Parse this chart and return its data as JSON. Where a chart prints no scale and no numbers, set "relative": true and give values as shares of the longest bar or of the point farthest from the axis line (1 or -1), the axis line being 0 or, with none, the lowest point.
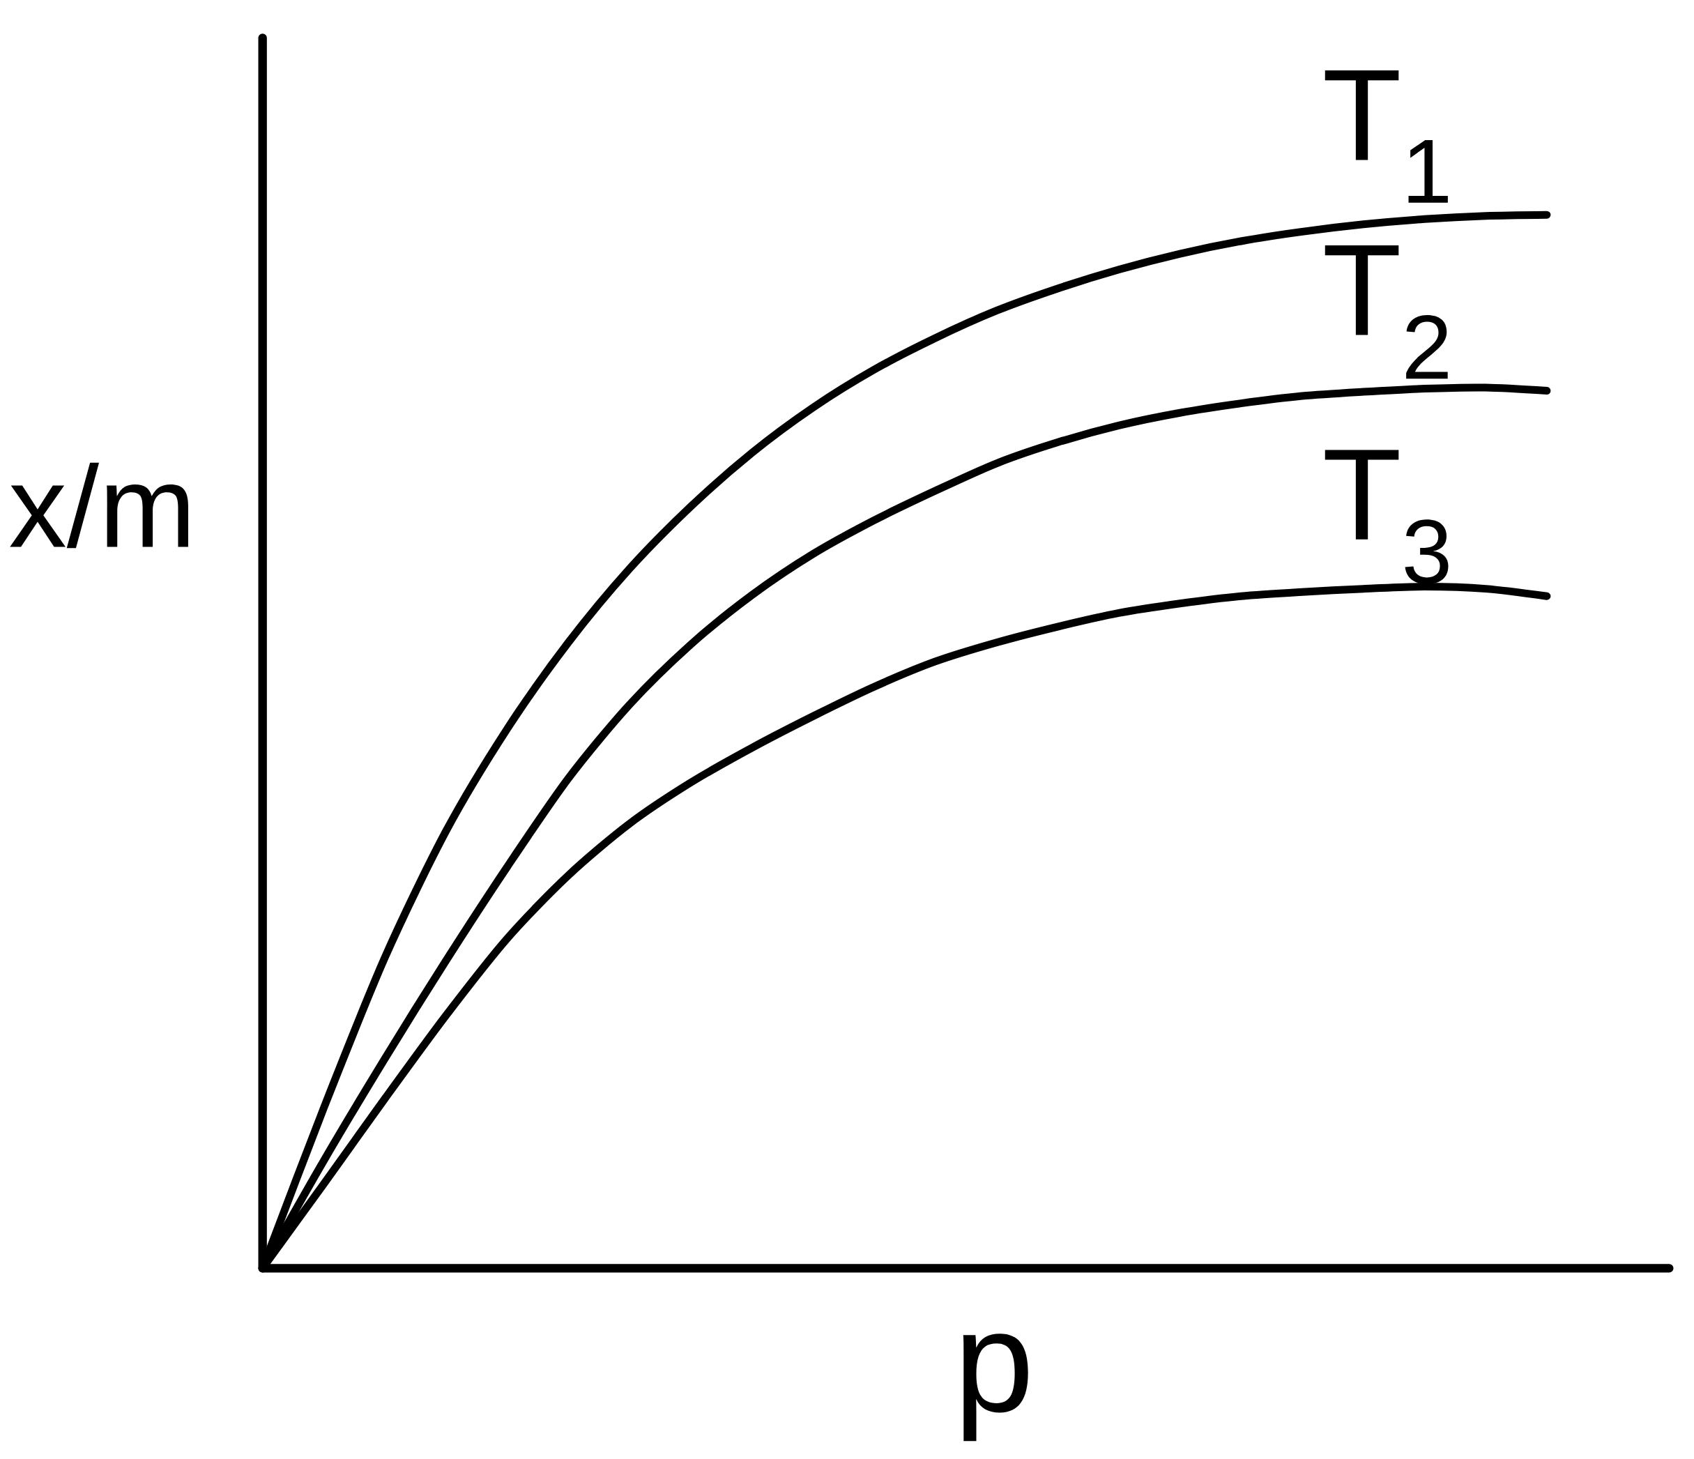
{
  "chart_data": {
    "type": "line",
    "relative": true,
    "xlabel": "p",
    "ylabel": "x/m",
    "categories": [
      null,
      null,
      null,
      null,
      null,
      null,
      null,
      null,
      null,
      null,
      null,
      null,
      null,
      null,
      null,
      null,
      null,
      null,
      null,
      null,
      null,
      null,
      null,
      null
    ],
    "series": [
      {
        "name": "T$_{1}$",
        "color": "#000000",
        "values": [
          0,
          0.152,
          0.295,
          0.415,
          0.512,
          0.594,
          0.664,
          0.723,
          0.774,
          0.817,
          0.853,
          0.883,
          0.909,
          0.93,
          0.948,
          0.963,
          0.975,
          0.984,
          0.991,
          0.996,
          0.999,
          1,
          null,
          null
        ]
      },
      {
        "name": "T$_{2}$",
        "color": "#000000",
        "values": [
          0,
          0.102,
          0.199,
          0.292,
          0.381,
          0.465,
          0.535,
          0.592,
          0.639,
          0.678,
          0.71,
          0.738,
          0.764,
          0.784,
          0.8,
          0.812,
          0.821,
          0.828,
          0.832,
          0.835,
          0.836,
          0.833,
          null,
          null
        ]
      },
      {
        "name": "T$_{3}$",
        "color": "#000000",
        "values": [
          0,
          0.08,
          0.161,
          0.24,
          0.313,
          0.373,
          0.422,
          0.461,
          0.494,
          0.524,
          0.552,
          0.576,
          0.594,
          0.609,
          0.622,
          0.631,
          0.638,
          0.642,
          0.645,
          0.647,
          0.645,
          0.638,
          null,
          null
        ]
      }
    ]
  }
}
